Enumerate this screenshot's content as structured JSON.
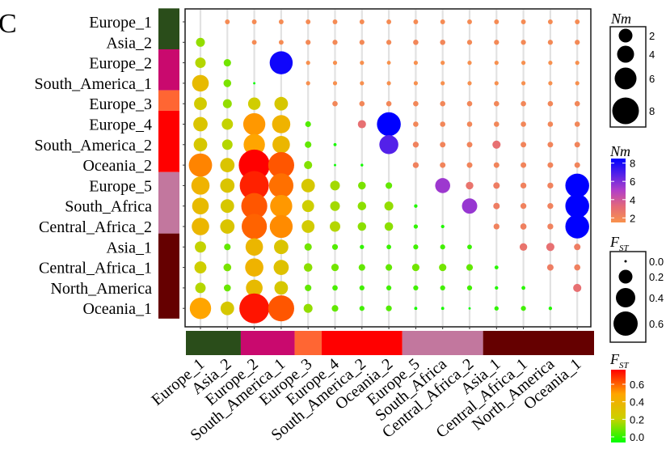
{
  "panel_letter": "C",
  "chart_data": {
    "type": "bubble-matrix",
    "populations": [
      "Europe_1",
      "Asia_2",
      "Europe_2",
      "South_America_1",
      "Europe_3",
      "Europe_4",
      "South_America_2",
      "Oceania_2",
      "Europe_5",
      "South_Africa",
      "Central_Africa_2",
      "Asia_1",
      "Central_Africa_1",
      "North_America",
      "Oceania_1"
    ],
    "display_labels": [
      "Europe_1",
      "Asia_2",
      "Europe_2",
      "South_America_1",
      "Europe_3",
      "Europe_4",
      "South_America_2",
      "Oceania_2",
      "Europe_5",
      "South_Africa",
      "Central_Africa_2",
      "Asia_1",
      "Central_Africa_1",
      "North_America",
      "Oceania_1"
    ],
    "groups": [
      {
        "start": 0,
        "end": 1,
        "color": "#2a4d1a"
      },
      {
        "start": 2,
        "end": 3,
        "color": "#c9096e"
      },
      {
        "start": 4,
        "end": 4,
        "color": "#ff6633"
      },
      {
        "start": 5,
        "end": 7,
        "color": "#ff0000"
      },
      {
        "start": 8,
        "end": 10,
        "color": "#c2779e"
      },
      {
        "start": 11,
        "end": 14,
        "color": "#650000"
      }
    ],
    "nm_matrix_upper": [
      [
        null,
        1.8,
        1.8,
        1.8,
        1.8,
        1.8,
        1.8,
        1.8,
        1.8,
        1.8,
        1.8,
        1.8,
        1.8,
        1.8,
        1.8
      ],
      [
        null,
        null,
        1.8,
        1.8,
        1.9,
        1.9,
        1.9,
        1.9,
        2.0,
        2.0,
        1.9,
        1.9,
        1.9,
        1.9,
        1.9
      ],
      [
        null,
        null,
        null,
        8.2,
        1.6,
        1.6,
        1.6,
        1.5,
        1.6,
        1.6,
        1.6,
        1.6,
        1.6,
        1.6,
        1.6
      ],
      [
        null,
        null,
        null,
        null,
        1.6,
        1.6,
        1.6,
        1.6,
        1.6,
        1.6,
        1.6,
        1.6,
        1.6,
        1.6,
        1.6
      ],
      [
        null,
        null,
        null,
        null,
        null,
        2.0,
        2.0,
        2.0,
        2.0,
        2.0,
        2.0,
        2.0,
        2.0,
        2.0,
        2.0
      ],
      [
        null,
        null,
        null,
        null,
        null,
        null,
        3.0,
        8.5,
        2.0,
        2.0,
        2.0,
        2.0,
        2.0,
        2.0,
        2.0
      ],
      [
        null,
        null,
        null,
        null,
        null,
        null,
        null,
        6.8,
        2.2,
        2.1,
        2.1,
        3.0,
        2.1,
        2.1,
        2.1
      ],
      [
        null,
        null,
        null,
        null,
        null,
        null,
        null,
        null,
        2.2,
        2.1,
        2.1,
        2.1,
        2.1,
        2.1,
        2.1
      ],
      [
        null,
        null,
        null,
        null,
        null,
        null,
        null,
        null,
        null,
        5.4,
        2.8,
        2.4,
        2.2,
        2.2,
        8.5
      ],
      [
        null,
        null,
        null,
        null,
        null,
        null,
        null,
        null,
        null,
        null,
        5.5,
        2.4,
        2.2,
        2.2,
        8.5
      ],
      [
        null,
        null,
        null,
        null,
        null,
        null,
        null,
        null,
        null,
        null,
        null,
        2.2,
        2.3,
        2.2,
        8.5
      ],
      [
        null,
        null,
        null,
        null,
        null,
        null,
        null,
        null,
        null,
        null,
        null,
        null,
        2.8,
        3.0,
        2.4
      ],
      [
        null,
        null,
        null,
        null,
        null,
        null,
        null,
        null,
        null,
        null,
        null,
        null,
        null,
        2.4,
        2.3
      ],
      [
        null,
        null,
        null,
        null,
        null,
        null,
        null,
        null,
        null,
        null,
        null,
        null,
        null,
        null,
        3.0
      ],
      [
        null,
        null,
        null,
        null,
        null,
        null,
        null,
        null,
        null,
        null,
        null,
        null,
        null,
        null,
        null
      ]
    ],
    "fst_matrix_lower": [
      [
        null,
        null,
        null,
        null,
        null,
        null,
        null,
        null,
        null,
        null,
        null,
        null,
        null,
        null,
        null
      ],
      [
        0.18,
        null,
        null,
        null,
        null,
        null,
        null,
        null,
        null,
        null,
        null,
        null,
        null,
        null,
        null
      ],
      [
        0.22,
        0.14,
        null,
        null,
        null,
        null,
        null,
        null,
        null,
        null,
        null,
        null,
        null,
        null,
        null
      ],
      [
        0.38,
        0.15,
        0.01,
        null,
        null,
        null,
        null,
        null,
        null,
        null,
        null,
        null,
        null,
        null,
        null
      ],
      [
        0.28,
        0.18,
        0.27,
        0.3,
        null,
        null,
        null,
        null,
        null,
        null,
        null,
        null,
        null,
        null,
        null
      ],
      [
        0.32,
        0.24,
        0.52,
        0.42,
        0.1,
        null,
        null,
        null,
        null,
        null,
        null,
        null,
        null,
        null,
        null
      ],
      [
        0.3,
        0.22,
        0.5,
        0.4,
        0.12,
        0.03,
        null,
        null,
        null,
        null,
        null,
        null,
        null,
        null,
        null
      ],
      [
        0.55,
        0.32,
        0.75,
        0.62,
        0.16,
        0.01,
        0.02,
        null,
        null,
        null,
        null,
        null,
        null,
        null,
        null
      ],
      [
        0.42,
        0.32,
        0.7,
        0.58,
        0.3,
        0.2,
        0.15,
        0.12,
        null,
        null,
        null,
        null,
        null,
        null,
        null
      ],
      [
        0.38,
        0.3,
        0.62,
        0.52,
        0.26,
        0.2,
        0.17,
        0.18,
        0.04,
        null,
        null,
        null,
        null,
        null,
        null
      ],
      [
        0.4,
        0.32,
        0.6,
        0.54,
        0.28,
        0.22,
        0.17,
        0.17,
        0.06,
        0.04,
        null,
        null,
        null,
        null,
        null
      ],
      [
        0.24,
        0.12,
        0.4,
        0.32,
        0.14,
        0.1,
        0.06,
        0.07,
        0.08,
        0.08,
        0.07,
        null,
        null,
        null,
        null
      ],
      [
        0.26,
        0.15,
        0.42,
        0.34,
        0.17,
        0.14,
        0.12,
        0.12,
        0.14,
        0.14,
        0.12,
        0.05,
        null,
        null,
        null
      ],
      [
        0.22,
        0.13,
        0.38,
        0.3,
        0.12,
        0.09,
        0.08,
        0.08,
        0.08,
        0.08,
        0.08,
        0.04,
        0.05,
        null,
        null
      ],
      [
        0.5,
        0.3,
        0.72,
        0.62,
        0.18,
        0.12,
        0.08,
        0.1,
        0.03,
        0.03,
        0.01,
        0.06,
        0.08,
        0.04,
        null
      ]
    ],
    "legend_nm_size": {
      "title": "Nm",
      "values": [
        2,
        4,
        6,
        8
      ]
    },
    "legend_nm_color": {
      "title": "Nm",
      "ticks": [
        2,
        4,
        6,
        8
      ],
      "range": [
        1.5,
        8.5
      ],
      "colors": [
        "#f8924c",
        "#0000ff"
      ]
    },
    "legend_fst_size": {
      "title": "F",
      "subscript": "ST",
      "values": [
        0.0,
        0.2,
        0.4,
        0.6
      ]
    },
    "legend_fst_color": {
      "title": "F",
      "subscript": "ST",
      "ticks": [
        0.0,
        0.2,
        0.4,
        0.6
      ],
      "range": [
        0,
        0.75
      ],
      "colors": [
        "#00ff00",
        "#ccd000",
        "#ffa500",
        "#ff0000"
      ]
    }
  }
}
